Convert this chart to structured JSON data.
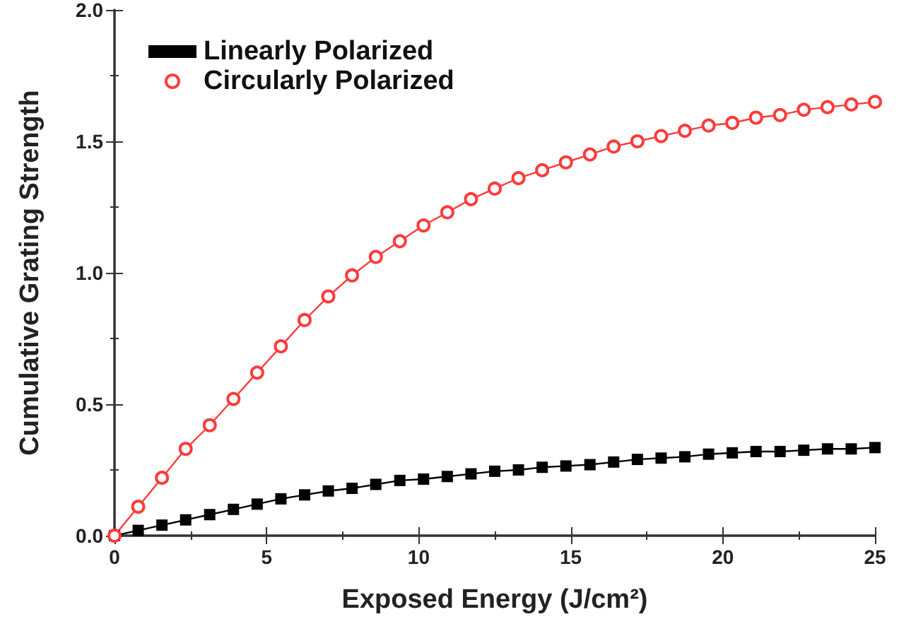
{
  "chart_data": {
    "type": "line",
    "xlabel": "Exposed Energy (J/cm²)",
    "ylabel": "Cumulative Grating Strength",
    "x": [
      0,
      0.78,
      1.56,
      2.34,
      3.13,
      3.91,
      4.69,
      5.47,
      6.25,
      7.03,
      7.81,
      8.59,
      9.38,
      10.16,
      10.94,
      11.72,
      12.5,
      13.28,
      14.06,
      14.84,
      15.63,
      16.41,
      17.19,
      17.97,
      18.75,
      19.53,
      20.31,
      21.09,
      21.88,
      22.66,
      23.44,
      24.22,
      25
    ],
    "series": [
      {
        "name": "Linearly Polarized",
        "color": "#000000",
        "marker": "square",
        "values": [
          0,
          0.02,
          0.04,
          0.06,
          0.08,
          0.1,
          0.12,
          0.14,
          0.155,
          0.17,
          0.18,
          0.195,
          0.21,
          0.215,
          0.225,
          0.235,
          0.245,
          0.25,
          0.26,
          0.265,
          0.27,
          0.28,
          0.29,
          0.295,
          0.3,
          0.31,
          0.315,
          0.32,
          0.32,
          0.325,
          0.33,
          0.33,
          0.335
        ]
      },
      {
        "name": "Circularly Polarized",
        "color": "#ff3b3b",
        "marker": "circle",
        "values": [
          0,
          0.11,
          0.22,
          0.33,
          0.42,
          0.52,
          0.62,
          0.72,
          0.82,
          0.91,
          0.99,
          1.06,
          1.12,
          1.18,
          1.23,
          1.28,
          1.32,
          1.36,
          1.39,
          1.42,
          1.45,
          1.48,
          1.5,
          1.52,
          1.54,
          1.56,
          1.57,
          1.59,
          1.6,
          1.62,
          1.63,
          1.64,
          1.65
        ]
      }
    ],
    "xlim": [
      0,
      25
    ],
    "xticks": [
      0,
      5,
      10,
      15,
      20,
      25
    ],
    "ylim": [
      0,
      2
    ],
    "yticks": [
      {
        "value": 0,
        "label": "0.0"
      },
      0.5,
      {
        "value": 1,
        "label": "1.0"
      },
      1.5,
      {
        "value": 2,
        "label": "2.0"
      }
    ],
    "grid": false,
    "legend": "top left",
    "line_style": "solid"
  }
}
